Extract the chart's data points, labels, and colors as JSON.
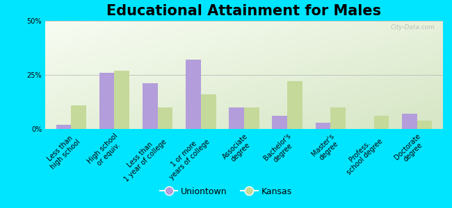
{
  "title": "Educational Attainment for Males",
  "categories": [
    "Less than\nhigh school",
    "High school\nor equiv.",
    "Less than\n1 year of college",
    "1 or more\nyears of college",
    "Associate\ndegree",
    "Bachelor's\ndegree",
    "Master's\ndegree",
    "Profess.\nschool degree",
    "Doctorate\ndegree"
  ],
  "uniontown": [
    2.0,
    26.0,
    21.0,
    32.0,
    10.0,
    6.0,
    3.0,
    0.0,
    7.0
  ],
  "kansas": [
    11.0,
    27.0,
    10.0,
    16.0,
    10.0,
    22.0,
    10.0,
    6.0,
    4.0
  ],
  "uniontown_color": "#b39ddb",
  "kansas_color": "#c5d99a",
  "background_outer": "#00e5ff",
  "ylim": [
    0,
    50
  ],
  "yticks": [
    0,
    25,
    50
  ],
  "ytick_labels": [
    "0%",
    "25%",
    "50%"
  ],
  "bar_width": 0.35,
  "title_fontsize": 15,
  "tick_fontsize": 7,
  "legend_fontsize": 9,
  "watermark": "City-Data.com"
}
